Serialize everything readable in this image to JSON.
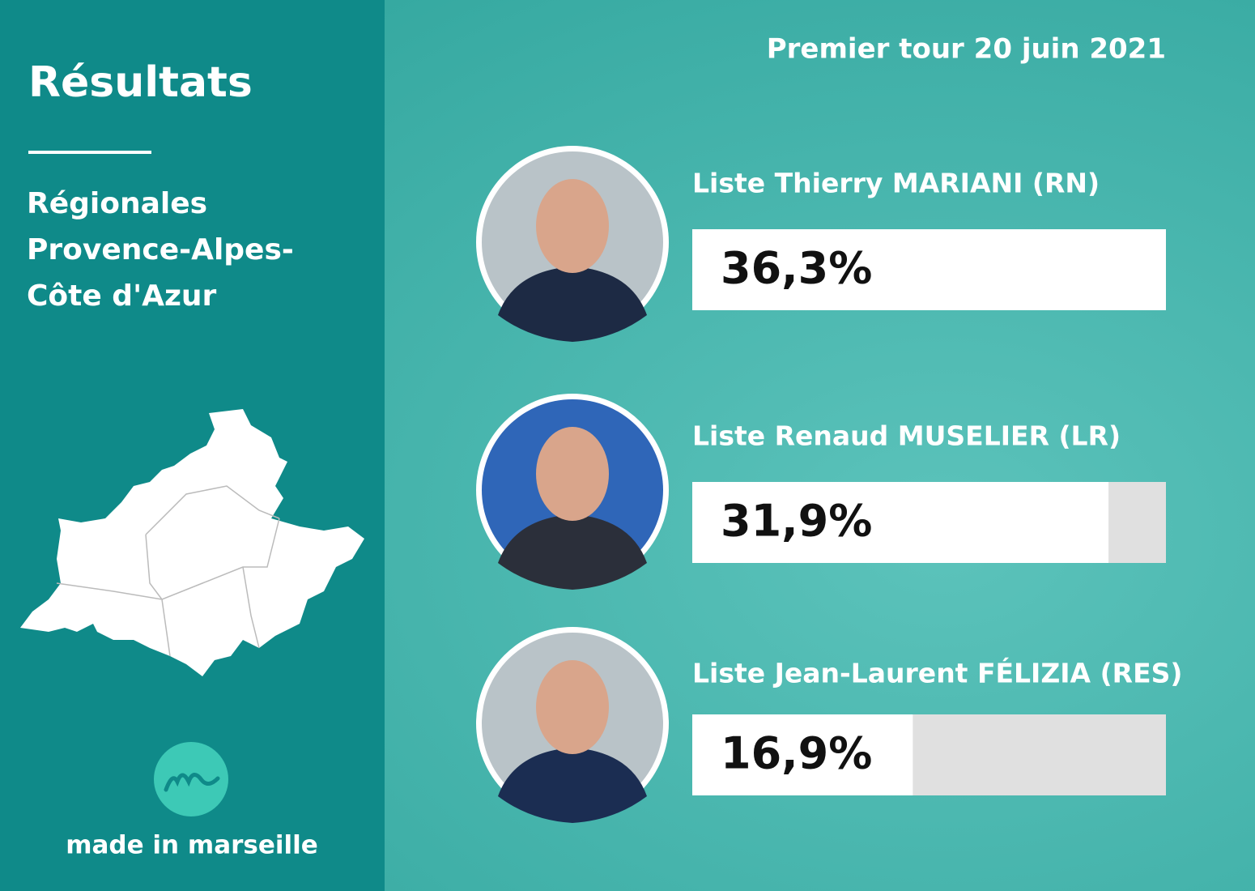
{
  "chart_data": {
    "type": "bar",
    "title": "Résultats",
    "subtitle": [
      "Régionales",
      "Provence-Alpes-",
      "Côte d'Azur"
    ],
    "annotation": "Premier tour 20 juin 2021",
    "categories": [
      "Liste Thierry MARIANI (RN)",
      "Liste Renaud MUSELIER (LR)",
      "Liste Jean-Laurent FÉLIZIA (RES)"
    ],
    "values": [
      36.3,
      31.9,
      16.9
    ],
    "value_labels": [
      "36,3%",
      "31,9%",
      "16,9%"
    ],
    "color": "#ffffff"
  },
  "footer": {
    "brand": "made in marseille"
  }
}
